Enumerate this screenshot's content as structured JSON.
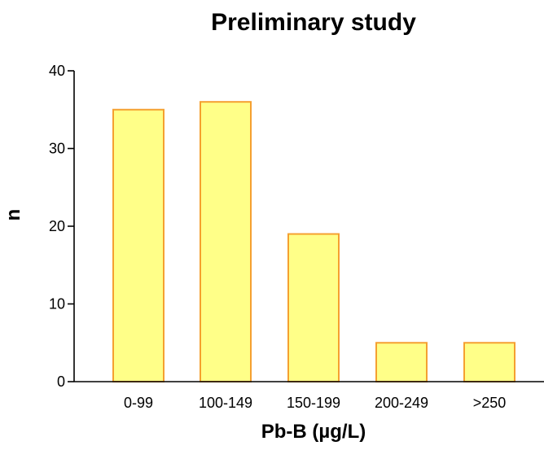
{
  "chart_data": {
    "type": "bar",
    "title": "Preliminary study",
    "xlabel": "Pb-B (µg/L)",
    "ylabel": "n",
    "categories": [
      "0-99",
      "100-149",
      "150-199",
      "200-249",
      ">250"
    ],
    "values": [
      35,
      36,
      19,
      5,
      5
    ],
    "ylim": [
      0,
      40
    ],
    "yticks": [
      0,
      10,
      20,
      30,
      40
    ],
    "grid": false,
    "colors": {
      "bar_fill": "#ffff88",
      "bar_stroke": "#f5a030",
      "axis": "#000000"
    }
  }
}
